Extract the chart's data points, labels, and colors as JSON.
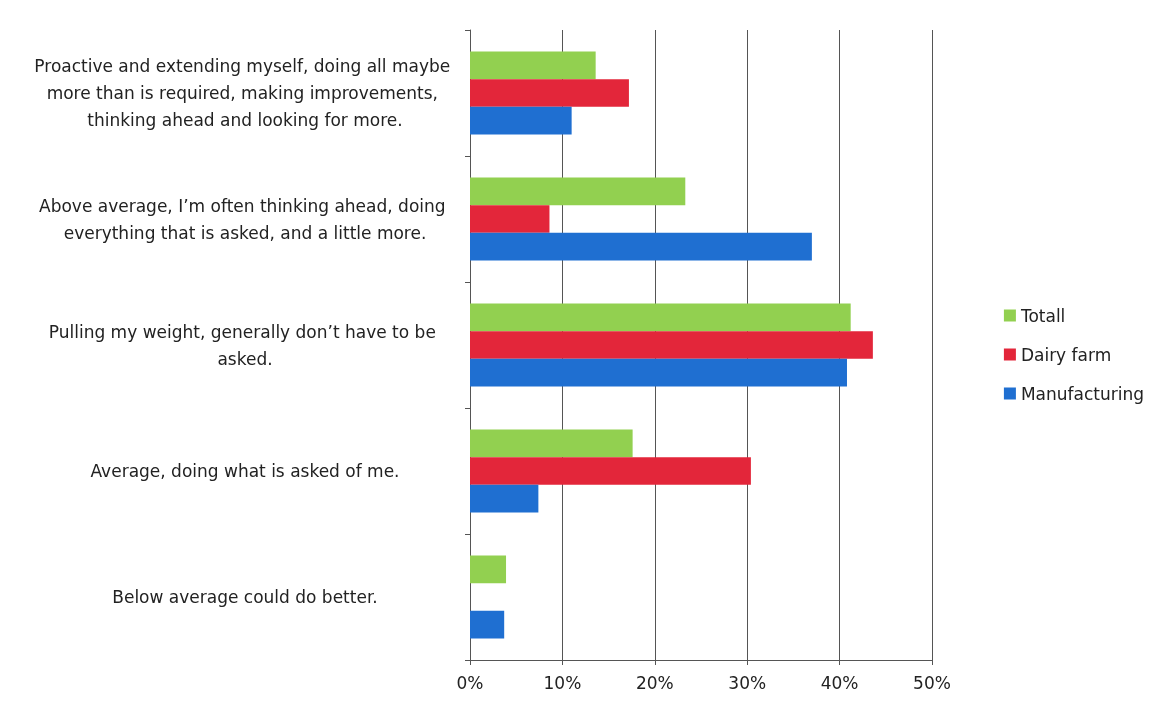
{
  "chart_data": {
    "type": "bar",
    "orientation": "horizontal",
    "categories": [
      "Proactive and extending myself, doing all maybe more than is required, making improvements, thinking ahead and looking for more.",
      "Above average, I’m often thinking ahead, doing everything that is asked, and a little more.",
      "Pulling my weight, generally don’t have to be asked.",
      "Average, doing what is asked of me.",
      "Below average could do better."
    ],
    "series": [
      {
        "name": "Totall",
        "color": "#92d050",
        "values": [
          13.6,
          23.3,
          41.2,
          17.6,
          3.9
        ]
      },
      {
        "name": "Dairy farm",
        "color": "#e3263a",
        "values": [
          17.2,
          8.6,
          43.6,
          30.4,
          null
        ]
      },
      {
        "name": "Manufacturing",
        "color": "#1f6fd1",
        "values": [
          11.0,
          37.0,
          40.8,
          7.4,
          3.7
        ]
      }
    ],
    "xlim": [
      0,
      50
    ],
    "xticks": [
      {
        "value": 0,
        "label": "0%"
      },
      {
        "value": 10,
        "label": "10%"
      },
      {
        "value": 20,
        "label": "20%"
      },
      {
        "value": 30,
        "label": "30%"
      },
      {
        "value": 40,
        "label": "40%"
      },
      {
        "value": 50,
        "label": "50%"
      }
    ],
    "grid": "x",
    "legend": "right"
  }
}
